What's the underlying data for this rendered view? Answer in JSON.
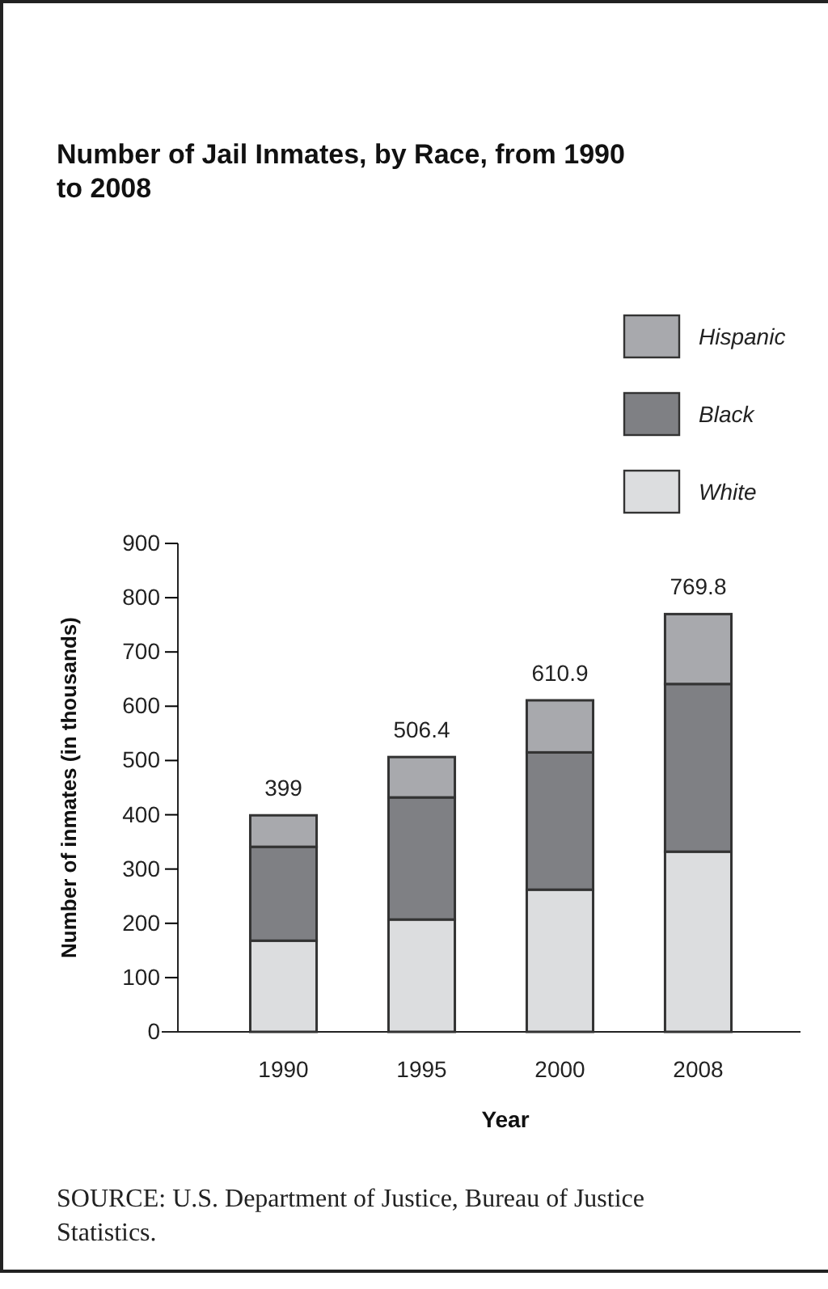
{
  "chart_data": {
    "type": "bar",
    "title": "Number of Jail Inmates, by Race, from 1990 to 2008",
    "xlabel": "Year",
    "ylabel": "Number of inmates (in thousands)",
    "categories": [
      "1990",
      "1995",
      "2000",
      "2008"
    ],
    "series": [
      {
        "name": "White",
        "color": "#dcdddf",
        "values": [
          168,
          207,
          262,
          332
        ]
      },
      {
        "name": "Black",
        "color": "#7f8084",
        "values": [
          173,
          225,
          253,
          309
        ]
      },
      {
        "name": "Hispanic",
        "color": "#a8a9ad",
        "values": [
          58,
          74.4,
          95.9,
          128.8
        ]
      }
    ],
    "stacked": true,
    "totals": [
      "399",
      "506.4",
      "610.9",
      "769.8"
    ],
    "ylim": [
      0,
      900
    ],
    "yticks": [
      0,
      100,
      200,
      300,
      400,
      500,
      600,
      700,
      800,
      900
    ],
    "grid": false,
    "legend": "top right",
    "annotations": [
      "SOURCE: U.S. Department of Justice, Bureau of Justice Statistics."
    ]
  }
}
